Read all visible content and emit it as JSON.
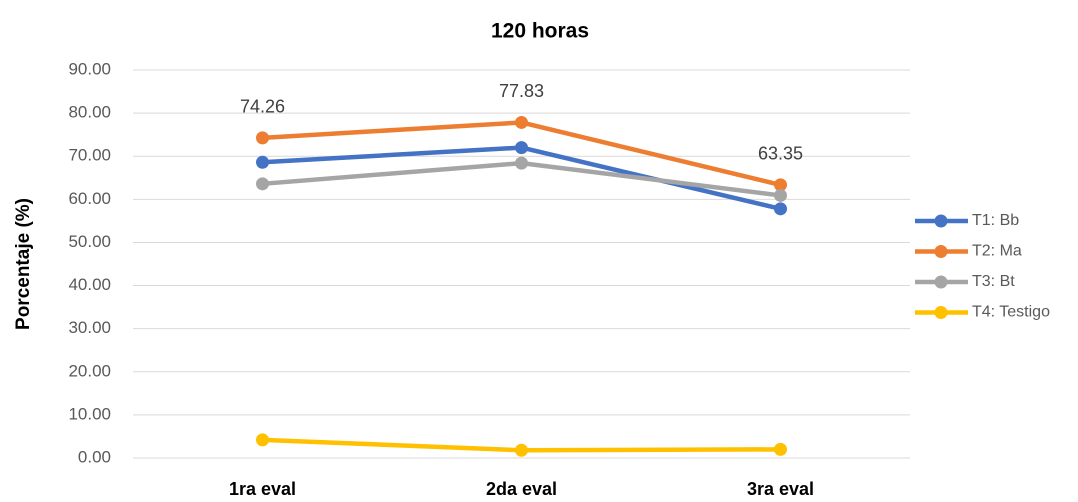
{
  "chart_data": {
    "type": "line",
    "title": "120 horas",
    "y_label": "Porcentaje (%)",
    "categories": [
      "1ra eval",
      "2da eval",
      "3ra eval"
    ],
    "series": [
      {
        "name": "T1: Bb",
        "color": "#4472c4",
        "values": [
          68.6,
          72.0,
          57.8
        ]
      },
      {
        "name": "T2: Ma",
        "color": "#ed7d31",
        "values": [
          74.26,
          77.83,
          63.35
        ],
        "show_labels": true
      },
      {
        "name": "T3: Bt",
        "color": "#a5a5a5",
        "values": [
          63.6,
          68.4,
          60.9
        ]
      },
      {
        "name": "T4: Testigo",
        "color": "#ffc000",
        "values": [
          4.2,
          1.8,
          2.0
        ]
      }
    ],
    "ylim": [
      0,
      90
    ],
    "yticks": [
      {
        "value": 0,
        "label": "0.00"
      },
      {
        "value": 10,
        "label": "10.00"
      },
      {
        "value": 20,
        "label": "20.00"
      },
      {
        "value": 30,
        "label": "30.00"
      },
      {
        "value": 40,
        "label": "40.00"
      },
      {
        "value": 50,
        "label": "50.00"
      },
      {
        "value": 60,
        "label": "60.00"
      },
      {
        "value": 70,
        "label": "70.00"
      },
      {
        "value": 80,
        "label": "80.00"
      },
      {
        "value": 90,
        "label": "90.00"
      }
    ],
    "grid": true,
    "legend": "right"
  }
}
